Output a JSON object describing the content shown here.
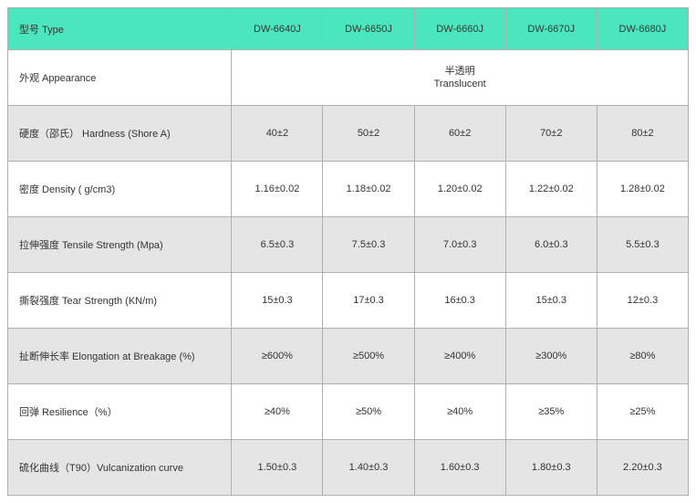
{
  "header": {
    "label": "型号 Type",
    "cols": [
      "DW-6640J",
      "DW-6650J",
      "DW-6660J",
      "DW-6670J",
      "DW-6680J"
    ]
  },
  "appearance": {
    "label": "外观 Appearance",
    "line1": "半透明",
    "line2": "Translucent"
  },
  "rows": [
    {
      "label": "硬度（邵氏） Hardness (Shore A)",
      "vals": [
        "40±2",
        "50±2",
        "60±2",
        "70±2",
        "80±2"
      ]
    },
    {
      "label": "密度 Density ( g/cm3)",
      "vals": [
        "1.16±0.02",
        "1.18±0.02",
        "1.20±0.02",
        "1.22±0.02",
        "1.28±0.02"
      ]
    },
    {
      "label": "拉伸强度 Tensile Strength (Mpa)",
      "vals": [
        "6.5±0.3",
        "7.5±0.3",
        "7.0±0.3",
        "6.0±0.3",
        "5.5±0.3"
      ]
    },
    {
      "label": "撕裂强度 Tear Strength (KN/m)",
      "vals": [
        "15±0.3",
        "17±0.3",
        "16±0.3",
        "15±0.3",
        "12±0.3"
      ]
    },
    {
      "label": "扯断伸长率 Elongation at Breakage (%)",
      "vals": [
        "≥600%",
        "≥500%",
        "≥400%",
        "≥300%",
        "≥80%"
      ]
    },
    {
      "label": "回弹 Resilience（%）",
      "vals": [
        "≥40%",
        "≥50%",
        "≥40%",
        "≥35%",
        "≥25%"
      ]
    },
    {
      "label": "硫化曲线（T90）Vulcanization curve",
      "vals": [
        "1.50±0.3",
        "1.40±0.3",
        "1.60±0.3",
        "1.80±0.3",
        "2.20±0.3"
      ]
    }
  ],
  "colors": {
    "header_bg": "#4ce6be",
    "row_odd_bg": "#ffffff",
    "row_even_bg": "#e5e5e5",
    "border": "#b0b0b0",
    "text": "#333333"
  }
}
